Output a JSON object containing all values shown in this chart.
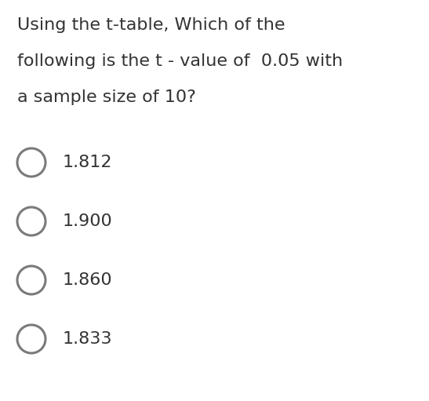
{
  "background_color": "#ffffff",
  "question_lines": [
    "Using the t-table, Which of the",
    "following is the t - value of  0.05 with",
    "a sample size of 10?"
  ],
  "options": [
    "1.812",
    "1.900",
    "1.860",
    "1.833"
  ],
  "text_color": "#333333",
  "circle_edge_color": "#7a7a7a",
  "question_fontsize": 16,
  "option_fontsize": 16,
  "circle_linewidth": 2.2
}
